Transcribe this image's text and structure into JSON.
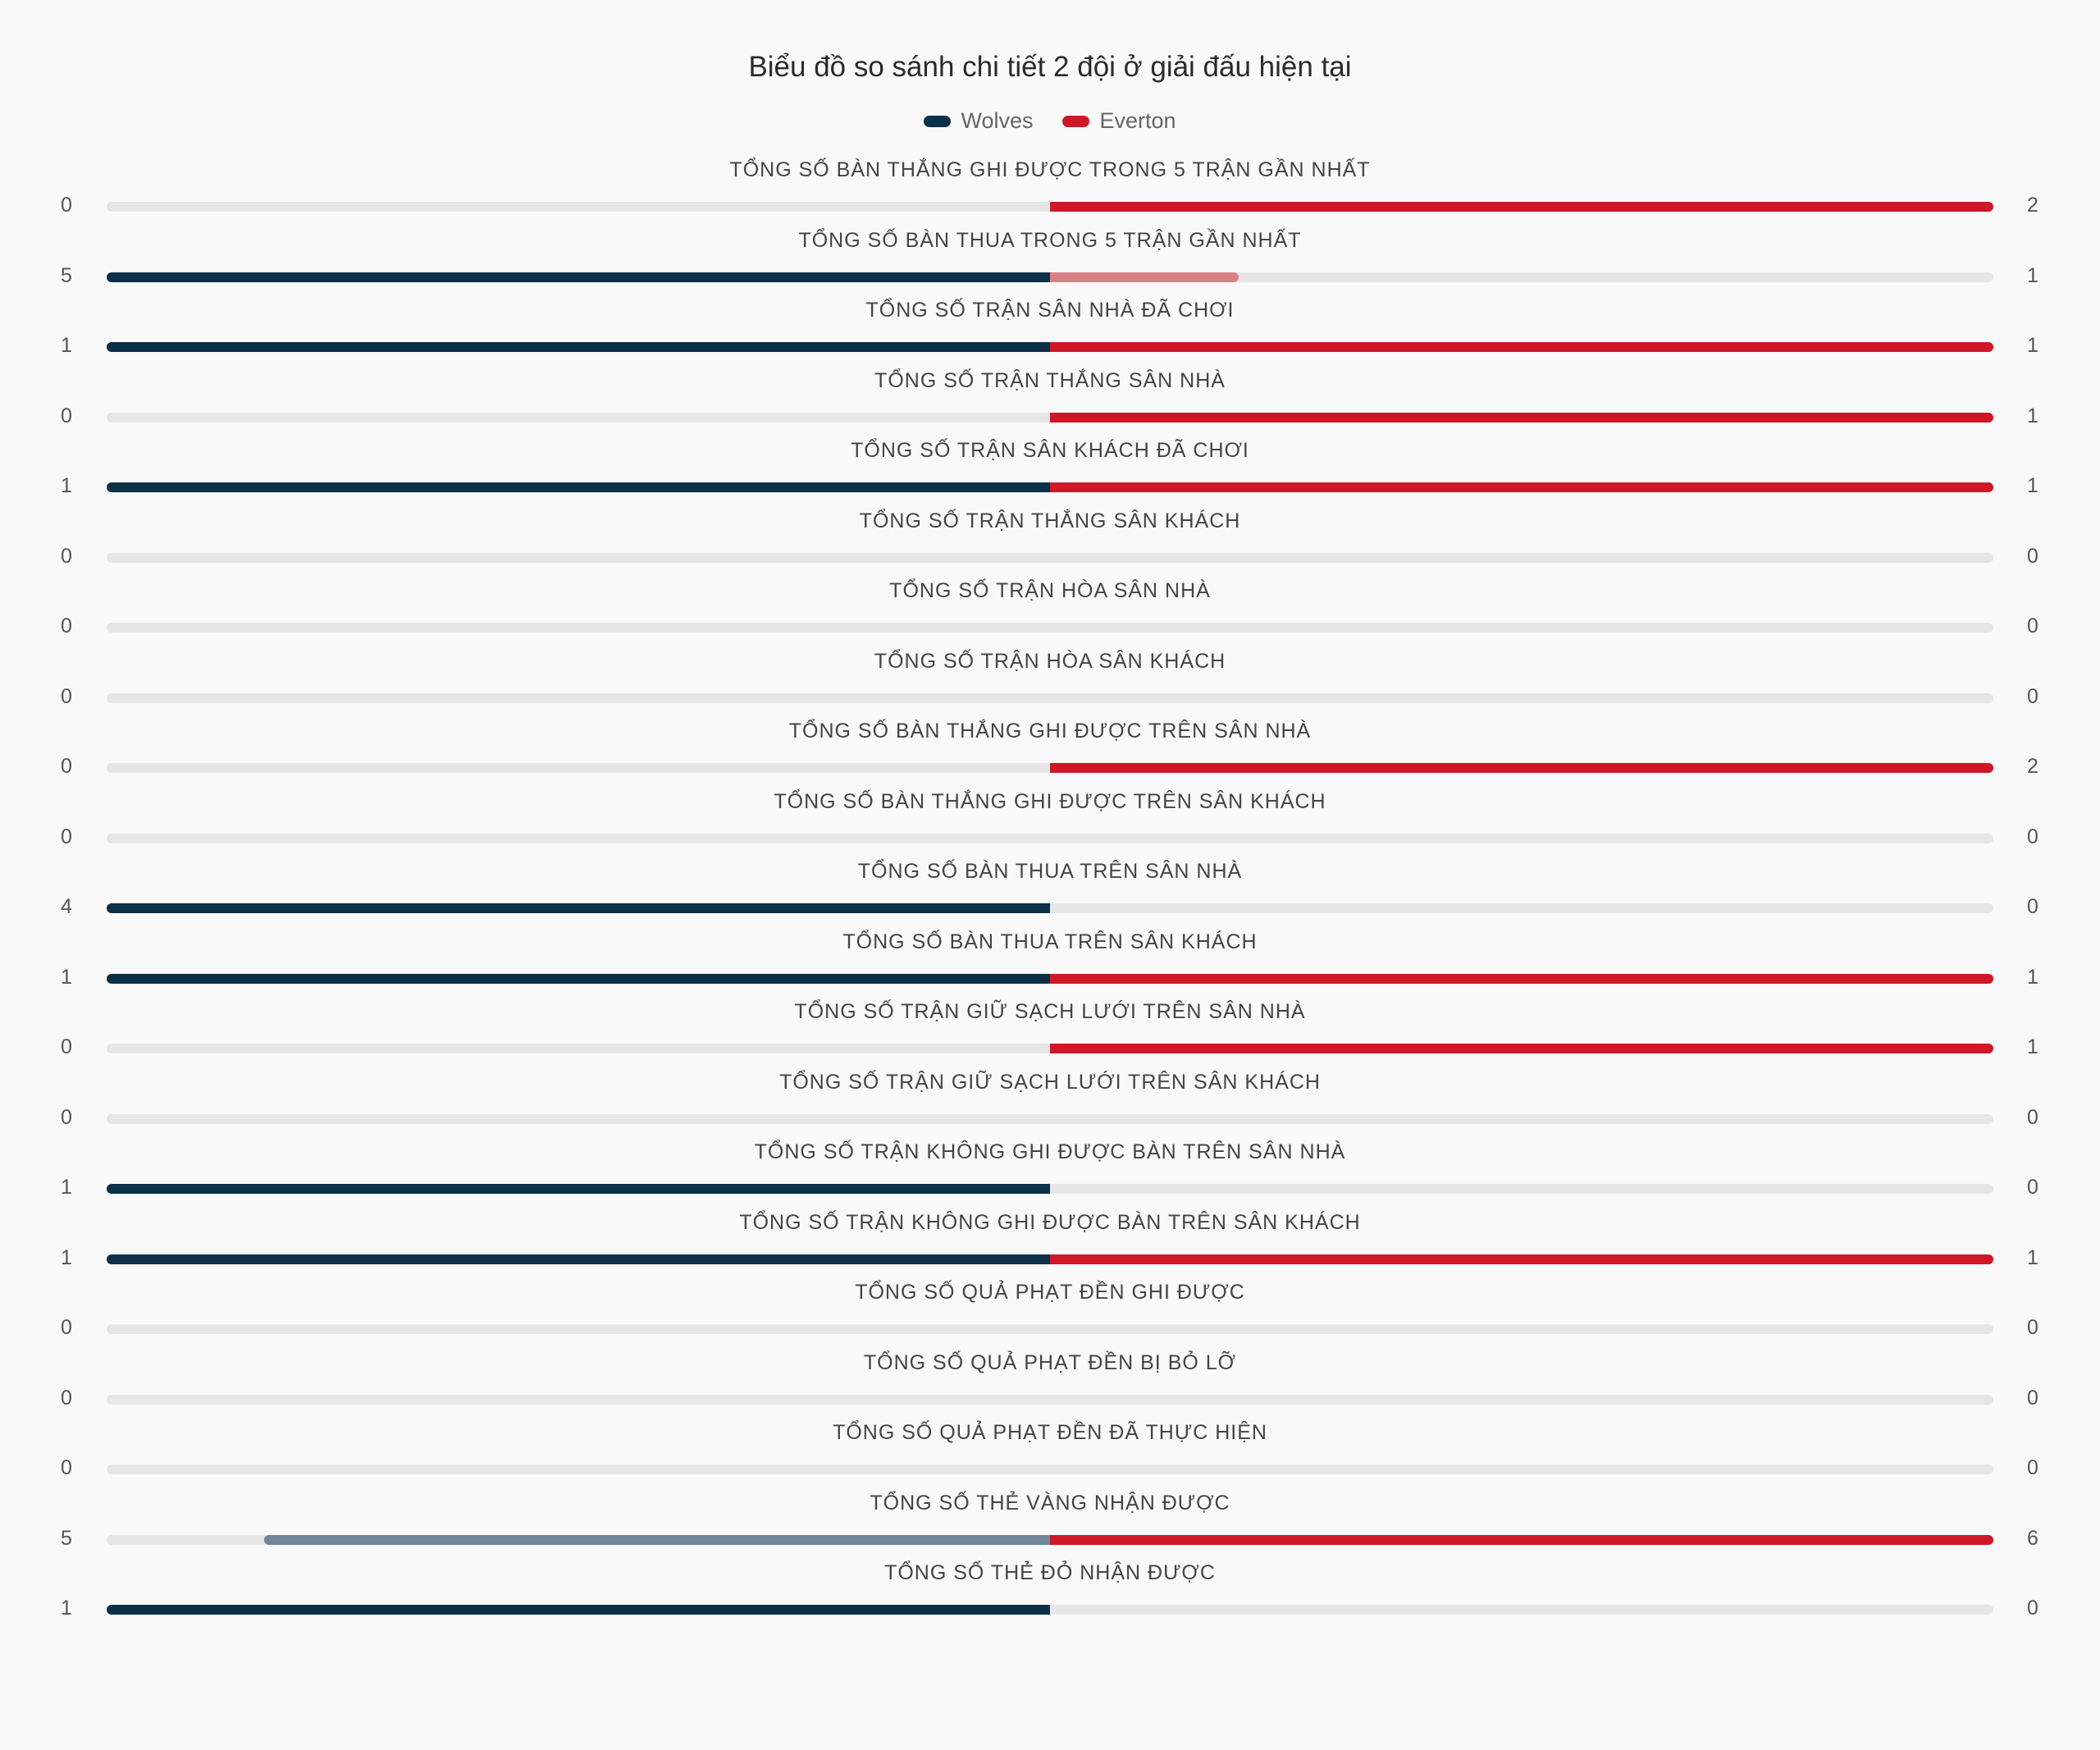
{
  "chart_data": {
    "type": "bar",
    "title": "Biểu đồ so sánh chi tiết 2 đội ở giải đấu hiện tại",
    "legend": {
      "position": "top-center"
    },
    "series": [
      {
        "name": "Wolves",
        "color": "#0b3048",
        "values": [
          0,
          5,
          1,
          0,
          1,
          0,
          0,
          0,
          0,
          0,
          4,
          1,
          0,
          0,
          1,
          1,
          0,
          0,
          0,
          5,
          1
        ]
      },
      {
        "name": "Everton",
        "color": "#cf1827",
        "values": [
          2,
          1,
          1,
          1,
          1,
          0,
          0,
          0,
          2,
          0,
          0,
          1,
          1,
          0,
          0,
          1,
          0,
          0,
          0,
          6,
          0
        ]
      }
    ],
    "categories": [
      "TỔNG SỐ BÀN THẮNG GHI ĐƯỢC TRONG 5 TRẬN GẦN NHẤT",
      "TỔNG SỐ BÀN THUA TRONG 5 TRẬN GẦN NHẤT",
      "TỔNG SỐ TRẬN SÂN NHÀ ĐÃ CHƠI",
      "TỔNG SỐ TRẬN THẮNG SÂN NHÀ",
      "TỔNG SỐ TRẬN SÂN KHÁCH ĐÃ CHƠI",
      "TỔNG SỐ TRẬN THẮNG SÂN KHÁCH",
      "TỔNG SỐ TRẬN HÒA SÂN NHÀ",
      "TỔNG SỐ TRẬN HÒA SÂN KHÁCH",
      "TỔNG SỐ BÀN THẮNG GHI ĐƯỢC TRÊN SÂN NHÀ",
      "TỔNG SỐ BÀN THẮNG GHI ĐƯỢC TRÊN SÂN KHÁCH",
      "TỔNG SỐ BÀN THUA TRÊN SÂN NHÀ",
      "TỔNG SỐ BÀN THUA TRÊN SÂN KHÁCH",
      "TỔNG SỐ TRẬN GIỮ SẠCH LƯỚI TRÊN SÂN NHÀ",
      "TỔNG SỐ TRẬN GIỮ SẠCH LƯỚI TRÊN SÂN KHÁCH",
      "TỔNG SỐ TRẬN KHÔNG GHI ĐƯỢC BÀN TRÊN SÂN NHÀ",
      "TỔNG SỐ TRẬN KHÔNG GHI ĐƯỢC BÀN TRÊN SÂN KHÁCH",
      "TỔNG SỐ QUẢ PHẠT ĐỀN GHI ĐƯỢC",
      "TỔNG SỐ QUẢ PHẠT ĐỀN BỊ BỎ LỠ",
      "TỔNG SỐ QUẢ PHẠT ĐỀN ĐÃ THỰC HIỆN",
      "TỔNG SỐ THẺ VÀNG NHẬN ĐƯỢC",
      "TỔNG SỐ THẺ ĐỎ NHẬN ĐƯỢC"
    ],
    "lighter_colors": {
      "wolves": "#6f8696",
      "everton": "#d98086"
    }
  }
}
